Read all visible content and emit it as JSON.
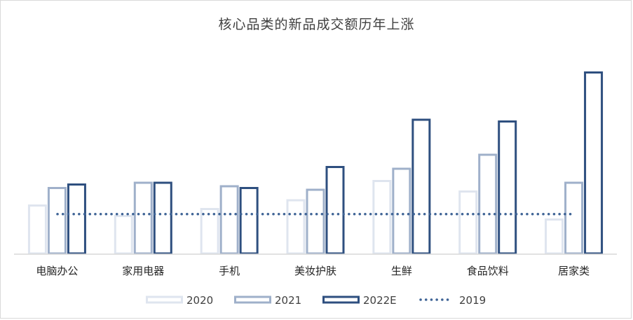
{
  "chart_data": {
    "type": "bar",
    "title": "核心品类的新品成交额历年上涨",
    "xlabel": "",
    "ylabel": "",
    "categories": [
      "电脑办公",
      "家用电器",
      "手机",
      "美妆护肤",
      "生鲜",
      "食品饮料",
      "居家类"
    ],
    "series": [
      {
        "name": "2020",
        "values": [
          28,
          22,
          26,
          31,
          42,
          36,
          20
        ],
        "color": "#dfe5ef"
      },
      {
        "name": "2021",
        "values": [
          38,
          41,
          39,
          37,
          49,
          57,
          41
        ],
        "color": "#9fb0ca"
      },
      {
        "name": "2022E",
        "values": [
          40,
          41,
          38,
          50,
          77,
          76,
          104
        ],
        "color": "#2e4f7f"
      }
    ],
    "baseline": {
      "name": "2019",
      "value": 22.5,
      "style": "dotted",
      "color": "#3f6496"
    },
    "ylim": [
      0,
      110
    ],
    "grid": false,
    "legend": "bottom"
  }
}
